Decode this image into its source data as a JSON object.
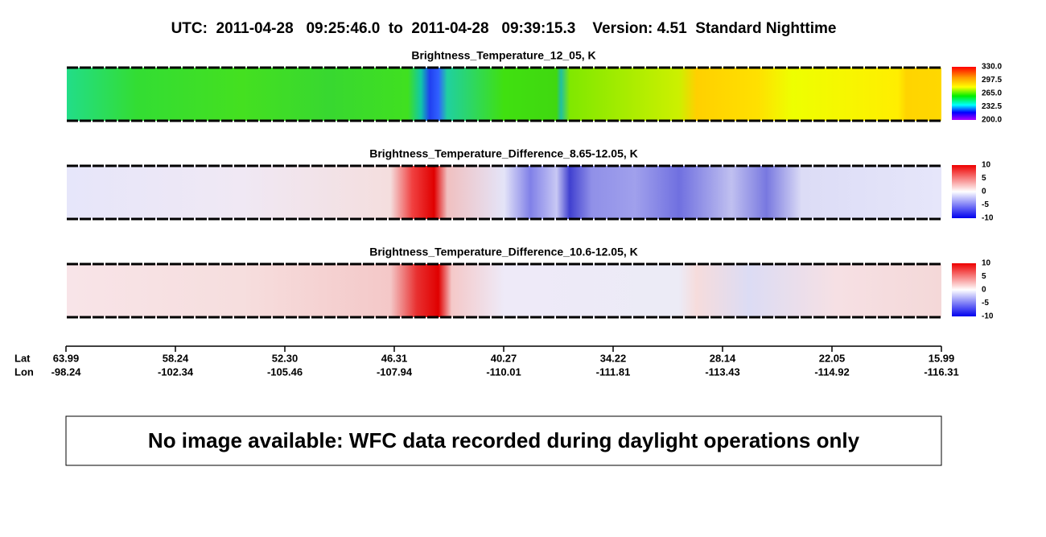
{
  "header": {
    "title": "UTC:  2011-04-28   09:25:46.0  to  2011-04-28   09:39:15.3    Version: 4.51  Standard Nighttime"
  },
  "panels": [
    {
      "title": "Brightness_Temperature_12_05, K",
      "colorbar_ticks": [
        "330.0",
        "297.5",
        "265.0",
        "232.5",
        "200.0"
      ]
    },
    {
      "title": "Brightness_Temperature_Difference_8.65-12.05, K",
      "colorbar_ticks": [
        "10",
        "5",
        "0",
        "-5",
        "-10"
      ]
    },
    {
      "title": "Brightness_Temperature_Difference_10.6-12.05, K",
      "colorbar_ticks": [
        "10",
        "5",
        "0",
        "-5",
        "-10"
      ]
    }
  ],
  "axis": {
    "row_labels": [
      "Lat",
      "Lon"
    ],
    "ticks": [
      {
        "lat": "63.99",
        "lon": "-98.24"
      },
      {
        "lat": "58.24",
        "lon": "-102.34"
      },
      {
        "lat": "52.30",
        "lon": "-105.46"
      },
      {
        "lat": "46.31",
        "lon": "-107.94"
      },
      {
        "lat": "40.27",
        "lon": "-110.01"
      },
      {
        "lat": "34.22",
        "lon": "-111.81"
      },
      {
        "lat": "28.14",
        "lon": "-113.43"
      },
      {
        "lat": "22.05",
        "lon": "-114.92"
      },
      {
        "lat": "15.99",
        "lon": "-116.31"
      }
    ]
  },
  "message": "No image available: WFC data recorded during daylight operations only"
}
